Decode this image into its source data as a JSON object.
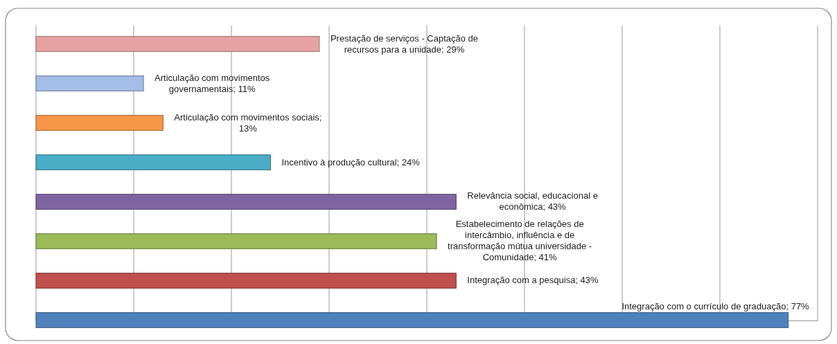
{
  "chart_data": {
    "type": "bar",
    "orientation": "horizontal",
    "categories": [
      null,
      null,
      null,
      null,
      null,
      null,
      null,
      null
    ],
    "values": [
      29,
      11,
      13,
      24,
      43,
      41,
      43,
      77
    ],
    "colors": [
      "#e6a3a1",
      "#a3bde8",
      "#f79646",
      "#4bacc6",
      "#8064a2",
      "#9bbb59",
      "#c0504d",
      "#4f81bd"
    ],
    "value_labels": [
      "Prestação de serviços - Captação de recursos para a unidade; 29%",
      "Articulação com movimentos governamentais; 11%",
      "Articulação com movimentos sociais; 13%",
      "Incentivo à produção cultural; 24%",
      "Relevância social, educacional e econômica; 43%",
      "Estabelecimento de relações de intercâmbio, influência e de transformação mútua universidade - Comunidade; 41%",
      "Integração com a pesquisa; 43%",
      "Integração com o currículo de graduação; 77%"
    ],
    "xlim": [
      0,
      80
    ],
    "xticks": [
      {
        "value": 0,
        "label": null
      },
      {
        "value": 10,
        "label": null
      },
      {
        "value": 20,
        "label": null
      },
      {
        "value": 30,
        "label": null
      },
      {
        "value": 40,
        "label": null
      },
      {
        "value": 50,
        "label": null
      },
      {
        "value": 60,
        "label": null
      },
      {
        "value": 70,
        "label": null
      },
      {
        "value": 80,
        "label": null
      }
    ],
    "grid": "x"
  }
}
